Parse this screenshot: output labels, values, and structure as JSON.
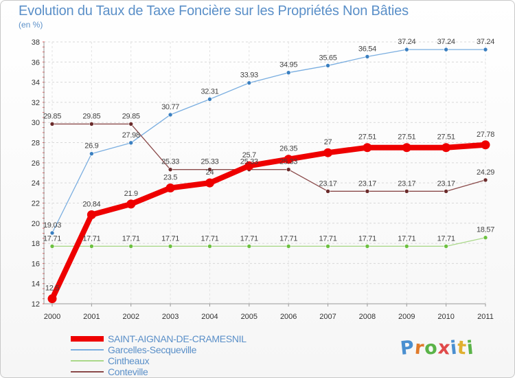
{
  "header": {
    "title": "Evolution du Taux de Taxe Foncière sur les Propriétés Non Bâties",
    "subtitle": "(en %)"
  },
  "logo": {
    "text": "Proxiti",
    "letter_colors": [
      "#4a8fd0",
      "#e07a2a",
      "#5ab348",
      "#e04a4a",
      "#4a8fd0",
      "#e0b030",
      "#5ab348"
    ]
  },
  "chart_data": {
    "type": "line",
    "x": [
      "2000",
      "2001",
      "2002",
      "2003",
      "2004",
      "2005",
      "2006",
      "2007",
      "2008",
      "2009",
      "2010",
      "2011"
    ],
    "ylim": [
      12,
      38
    ],
    "yticks": [
      12,
      14,
      16,
      18,
      20,
      22,
      24,
      26,
      28,
      30,
      32,
      34,
      36,
      38
    ],
    "grid": true,
    "legend_position": "bottom-left",
    "series": [
      {
        "name": "SAINT-AIGNAN-DE-CRAMESNIL",
        "color": "#ee0000",
        "emphasis": true,
        "values": [
          12.5,
          20.84,
          21.9,
          23.5,
          24,
          25.7,
          26.35,
          27,
          27.51,
          27.51,
          27.51,
          27.78
        ],
        "labels": [
          "12.5",
          "20.84",
          "21.9",
          "23.5",
          "24",
          "25.7",
          "26.35",
          "27",
          "27.51",
          "27.51",
          "27.51",
          "27.78"
        ]
      },
      {
        "name": "Garcelles-Secqueville",
        "color": "#7aaee0",
        "point_color": "#3a7fc0",
        "values": [
          19.03,
          26.9,
          27.98,
          30.77,
          32.31,
          33.93,
          34.95,
          35.65,
          36.54,
          37.24,
          37.24,
          37.24
        ],
        "labels": [
          "19.03",
          "26.9",
          "27.98",
          "30.77",
          "32.31",
          "33.93",
          "34.95",
          "35.65",
          "36.54",
          "37.24",
          "37.24",
          "37.24"
        ]
      },
      {
        "name": "Cintheaux",
        "color": "#aad88a",
        "point_color": "#6cc040",
        "values": [
          17.71,
          17.71,
          17.71,
          17.71,
          17.71,
          17.71,
          17.71,
          17.71,
          17.71,
          17.71,
          17.71,
          18.57
        ],
        "labels": [
          "17.71",
          "17.71",
          "17.71",
          "17.71",
          "17.71",
          "17.71",
          "17.71",
          "17.71",
          "17.71",
          "17.71",
          "17.71",
          "18.57"
        ]
      },
      {
        "name": "Conteville",
        "color": "#8a4a4a",
        "point_color": "#6a2a2a",
        "values": [
          29.85,
          29.85,
          29.85,
          25.33,
          25.33,
          25.33,
          25.33,
          23.17,
          23.17,
          23.17,
          23.17,
          24.29
        ],
        "labels": [
          "29.85",
          "29.85",
          "29.85",
          "25.33",
          "25.33",
          "25.33",
          "25.33",
          "23.17",
          "23.17",
          "23.17",
          "23.17",
          "24.29"
        ]
      }
    ]
  }
}
